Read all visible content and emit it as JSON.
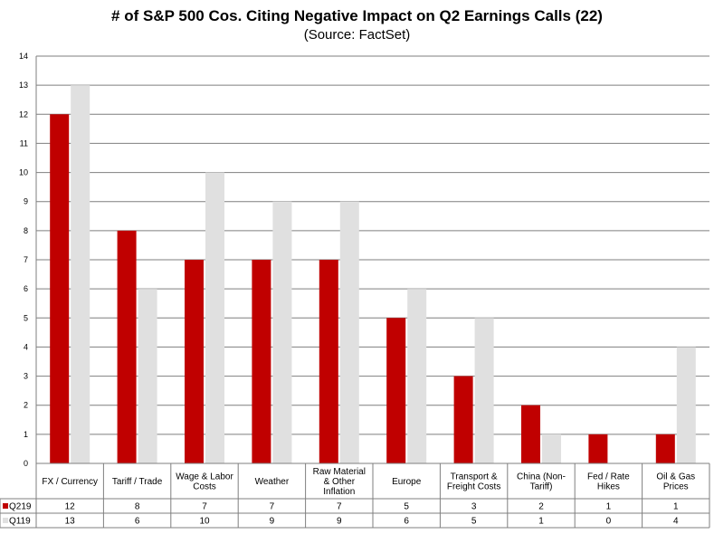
{
  "chart_data": {
    "type": "bar",
    "title": "# of S&P 500 Cos. Citing Negative Impact on Q2 Earnings Calls (22)",
    "subtitle": "(Source: FactSet)",
    "categories": [
      [
        "FX / Currency"
      ],
      [
        "Tariff / Trade"
      ],
      [
        "Wage & Labor",
        "Costs"
      ],
      [
        "Weather"
      ],
      [
        "Raw Material",
        "& Other",
        "Inflation"
      ],
      [
        "Europe"
      ],
      [
        "Transport &",
        "Freight Costs"
      ],
      [
        "China (Non-",
        "Tariff)"
      ],
      [
        "Fed / Rate",
        "Hikes"
      ],
      [
        "Oil & Gas",
        "Prices"
      ]
    ],
    "series": [
      {
        "name": "Q219",
        "color": "#c00000",
        "values": [
          12,
          8,
          7,
          7,
          7,
          5,
          3,
          2,
          1,
          1
        ]
      },
      {
        "name": "Q119",
        "color": "#e0e0e0",
        "values": [
          13,
          6,
          10,
          9,
          9,
          6,
          5,
          1,
          0,
          4
        ]
      }
    ],
    "ylim": [
      0,
      14
    ],
    "yticks": [
      "0",
      "1",
      "2",
      "3",
      "4",
      "5",
      "6",
      "7",
      "8",
      "9",
      "10",
      "11",
      "12",
      "13",
      "14"
    ],
    "grid": true,
    "legend": "data-table"
  }
}
